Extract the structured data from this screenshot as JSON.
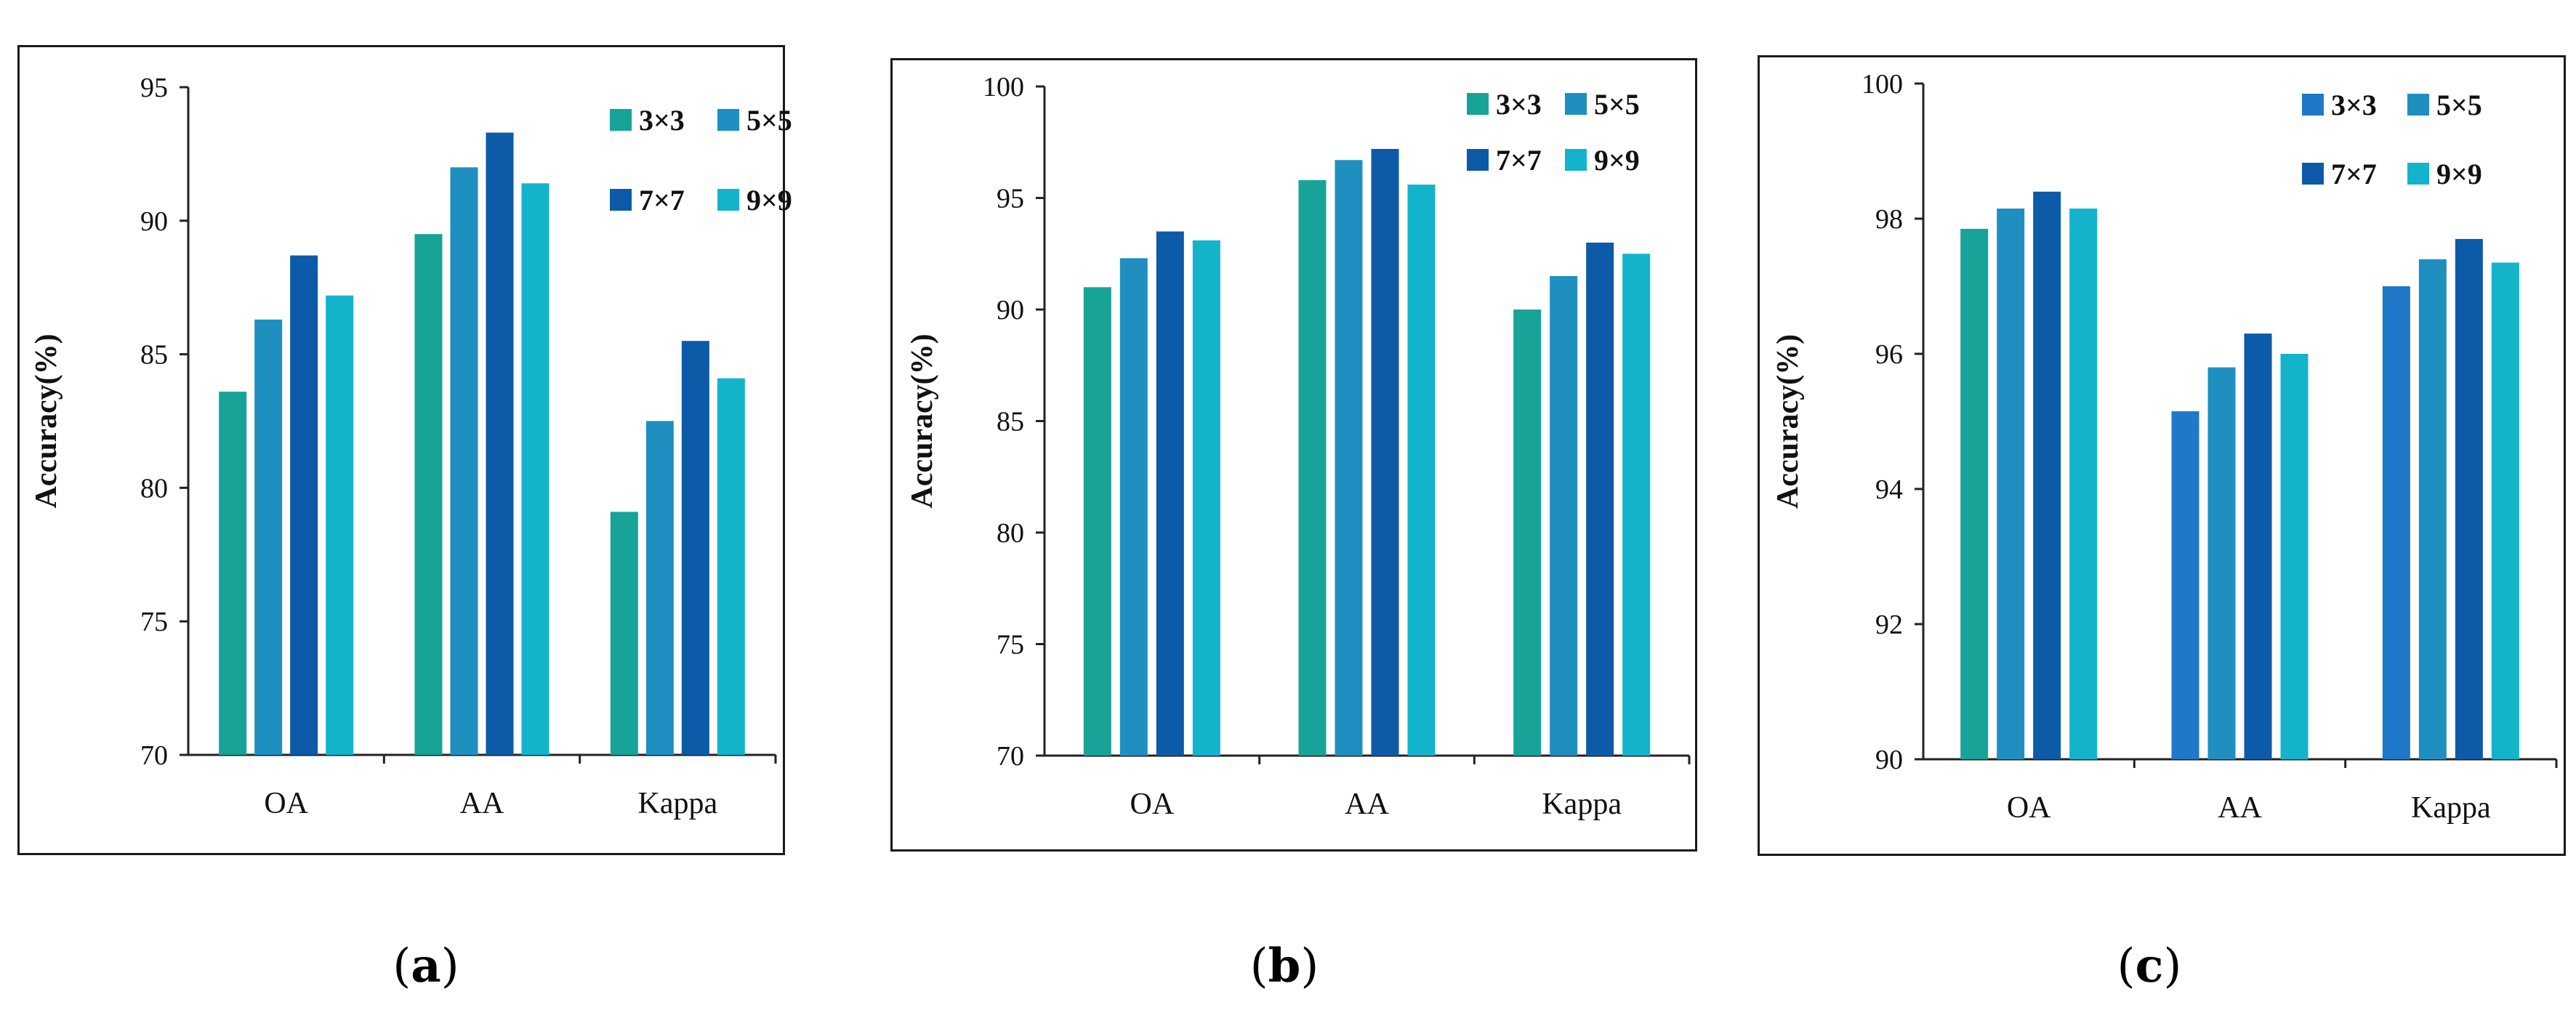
{
  "chart_data": [
    {
      "type": "bar",
      "panel_label": "a",
      "ylabel": "Accuracy(%)",
      "xlabel": "",
      "ylim": [
        70,
        95
      ],
      "yticks": [
        70,
        75,
        80,
        85,
        90,
        95
      ],
      "categories": [
        "OA",
        "AA",
        "Kappa"
      ],
      "legend_position": "top-right",
      "series": [
        {
          "name": "3×3",
          "color": "#17a398",
          "values": [
            83.6,
            89.5,
            79.1
          ]
        },
        {
          "name": "5×5",
          "color": "#1f8fc0",
          "values": [
            86.3,
            92.0,
            82.5
          ]
        },
        {
          "name": "7×7",
          "color": "#0c5aa8",
          "values": [
            88.7,
            93.3,
            85.5
          ]
        },
        {
          "name": "9×9",
          "color": "#13b3cc",
          "values": [
            87.2,
            91.4,
            84.1
          ]
        }
      ]
    },
    {
      "type": "bar",
      "panel_label": "b",
      "ylabel": "Accuracy(%)",
      "xlabel": "",
      "ylim": [
        70,
        100
      ],
      "yticks": [
        70,
        75,
        80,
        85,
        90,
        95,
        100
      ],
      "categories": [
        "OA",
        "AA",
        "Kappa"
      ],
      "legend_position": "top-right",
      "series": [
        {
          "name": "3×3",
          "color": "#17a398",
          "values": [
            91.0,
            95.8,
            90.0
          ]
        },
        {
          "name": "5×5",
          "color": "#1f8fc0",
          "values": [
            92.3,
            96.7,
            91.5
          ]
        },
        {
          "name": "7×7",
          "color": "#0c5aa8",
          "values": [
            93.5,
            97.2,
            93.0
          ]
        },
        {
          "name": "9×9",
          "color": "#13b3cc",
          "values": [
            93.1,
            95.6,
            92.5
          ]
        }
      ]
    },
    {
      "type": "bar",
      "panel_label": "c",
      "ylabel": "Accuracy(%)",
      "xlabel": "",
      "ylim": [
        90,
        100
      ],
      "yticks": [
        90,
        92,
        94,
        96,
        98,
        100
      ],
      "categories": [
        "OA",
        "AA",
        "Kappa"
      ],
      "legend_position": "top-right",
      "series": [
        {
          "name": "3×3",
          "color": "#1f78c8",
          "values": [
            97.85,
            95.15,
            97.0
          ],
          "value_colors": [
            "#17a398",
            "#1f78c8",
            "#1f78c8"
          ]
        },
        {
          "name": "5×5",
          "color": "#1f8fc0",
          "values": [
            98.15,
            95.8,
            97.4
          ]
        },
        {
          "name": "7×7",
          "color": "#0c5aa8",
          "values": [
            98.4,
            96.3,
            97.7
          ]
        },
        {
          "name": "9×9",
          "color": "#13b3cc",
          "values": [
            98.15,
            96.0,
            97.35
          ]
        }
      ]
    }
  ]
}
